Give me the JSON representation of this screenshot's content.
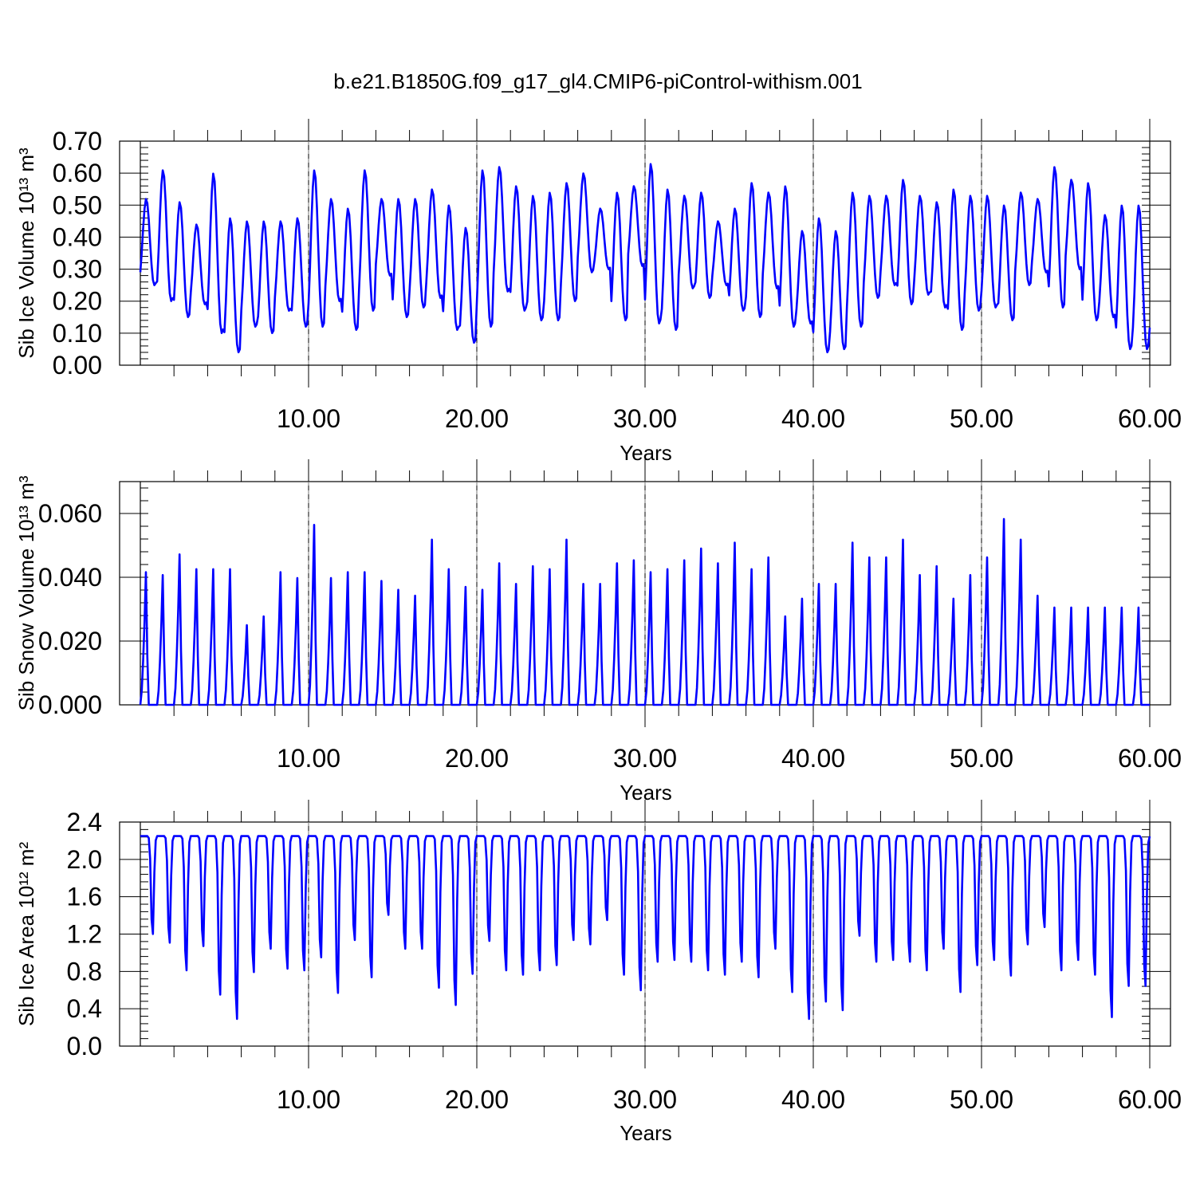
{
  "figure_title": "b.e21.B1850G.f09_g17_gl4.CMIP6-piControl-withism.001",
  "colors": {
    "series": "#0000ff",
    "axes": "#000000",
    "grid": "#777777"
  },
  "chart_data": [
    {
      "type": "line",
      "ylabel": "Sib Ice Volume 10¹³ m³",
      "xlabel": "Years",
      "xlim": [
        0,
        60
      ],
      "ylim": [
        0,
        0.7
      ],
      "x_tick_labels": [
        "10.00",
        "20.00",
        "30.00",
        "40.00",
        "50.00",
        "60.00"
      ],
      "y_tick_labels": [
        "0.00",
        "0.10",
        "0.20",
        "0.30",
        "0.40",
        "0.50",
        "0.60",
        "0.70"
      ],
      "grid": "vertical dashed at 10-year intervals",
      "x_points_per_year": 12,
      "series": [
        {
          "year_max": [
            0.52,
            0.61,
            0.51,
            0.44,
            0.6,
            0.46,
            0.45,
            0.45,
            0.45,
            0.46,
            0.61,
            0.52,
            0.49,
            0.61,
            0.52,
            0.52,
            0.52,
            0.55,
            0.5,
            0.43,
            0.61,
            0.62,
            0.56,
            0.53,
            0.54,
            0.57,
            0.6,
            0.49,
            0.54,
            0.56,
            0.63,
            0.55,
            0.53,
            0.54,
            0.45,
            0.49,
            0.57,
            0.54,
            0.56,
            0.42,
            0.46,
            0.42,
            0.54,
            0.53,
            0.53,
            0.58,
            0.53,
            0.51,
            0.55,
            0.53,
            0.53,
            0.5,
            0.54,
            0.52,
            0.62,
            0.58,
            0.57,
            0.47,
            0.5
          ],
          "year_min": [
            0.25,
            0.2,
            0.15,
            0.19,
            0.1,
            0.04,
            0.12,
            0.1,
            0.17,
            0.12,
            0.12,
            0.2,
            0.11,
            0.17,
            0.28,
            0.15,
            0.18,
            0.21,
            0.11,
            0.07,
            0.12,
            0.23,
            0.17,
            0.14,
            0.14,
            0.2,
            0.29,
            0.3,
            0.14,
            0.31,
            0.13,
            0.11,
            0.24,
            0.21,
            0.25,
            0.17,
            0.15,
            0.24,
            0.12,
            0.13,
            0.04,
            0.05,
            0.12,
            0.21,
            0.25,
            0.19,
            0.22,
            0.18,
            0.11,
            0.17,
            0.18,
            0.14,
            0.25,
            0.29,
            0.18,
            0.3,
            0.14,
            0.15,
            0.05
          ]
        }
      ]
    },
    {
      "type": "line",
      "ylabel": "Sib Snow Volume 10¹³ m³",
      "xlabel": "Years",
      "xlim": [
        0,
        60
      ],
      "ylim": [
        0,
        0.07
      ],
      "x_tick_labels": [
        "10.00",
        "20.00",
        "30.00",
        "40.00",
        "50.00",
        "60.00"
      ],
      "y_tick_labels": [
        "0.000",
        "0.020",
        "0.040",
        "0.060"
      ],
      "grid": "vertical dashed at 10-year intervals",
      "x_points_per_year": 12,
      "series": [
        {
          "year_max": [
            0.045,
            0.044,
            0.051,
            0.046,
            0.046,
            0.046,
            0.027,
            0.03,
            0.045,
            0.043,
            0.061,
            0.043,
            0.045,
            0.045,
            0.042,
            0.039,
            0.037,
            0.056,
            0.046,
            0.04,
            0.039,
            0.048,
            0.041,
            0.047,
            0.046,
            0.056,
            0.041,
            0.041,
            0.048,
            0.049,
            0.045,
            0.046,
            0.049,
            0.053,
            0.048,
            0.055,
            0.046,
            0.05,
            0.03,
            0.036,
            0.041,
            0.041,
            0.055,
            0.05,
            0.05,
            0.056,
            0.044,
            0.047,
            0.036,
            0.044,
            0.05,
            0.063,
            0.056,
            0.037,
            0.033
          ]
        }
      ]
    },
    {
      "type": "line",
      "ylabel": "Sib Ice Area 10¹² m²",
      "xlabel": "Years",
      "xlim": [
        0,
        60
      ],
      "ylim": [
        0,
        2.4
      ],
      "x_tick_labels": [
        "10.00",
        "20.00",
        "30.00",
        "40.00",
        "50.00",
        "60.00"
      ],
      "y_tick_labels": [
        "0.0",
        "0.4",
        "0.8",
        "1.2",
        "1.6",
        "2.0",
        "2.4"
      ],
      "grid": "vertical dashed at 10-year intervals",
      "x_points_per_year": 12,
      "series": [
        {
          "year_max": 2.25,
          "year_min": [
            1.12,
            1.02,
            0.7,
            0.98,
            0.42,
            0.14,
            0.68,
            0.95,
            0.72,
            0.7,
            0.85,
            0.44,
            1.05,
            0.62,
            1.34,
            0.95,
            0.95,
            0.5,
            0.3,
            0.66,
            1.04,
            0.7,
            0.65,
            0.7,
            0.76,
            1.05,
            1.0,
            1.28,
            0.65,
            0.47,
            0.8,
            0.82,
            0.8,
            0.7,
            0.65,
            0.8,
            0.62,
            0.95,
            0.45,
            0.14,
            0.34,
            0.24,
            1.1,
            0.8,
            0.82,
            0.8,
            0.7,
            0.95,
            0.45,
            0.76,
            0.82,
            0.64,
            1.0,
            1.2,
            0.7,
            0.82,
            0.65,
            0.16,
            0.52
          ]
        }
      ]
    }
  ]
}
